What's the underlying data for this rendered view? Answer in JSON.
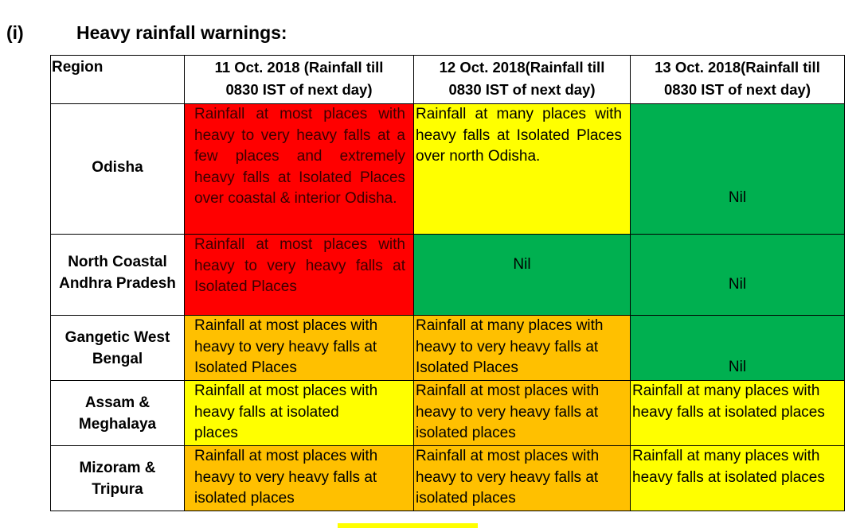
{
  "heading": {
    "number": "(i)",
    "title": "Heavy rainfall warnings:"
  },
  "table": {
    "headers": {
      "region": "Region",
      "day1_line1": "11 Oct. 2018 (Rainfall till",
      "day1_line2": "0830 IST of next day)",
      "day2_line1": "12 Oct. 2018(Rainfall till",
      "day2_line2": "0830 IST of next day)",
      "day3_line1": "13 Oct. 2018(Rainfall till",
      "day3_line2": "0830 IST of next day)"
    },
    "rows": [
      {
        "region": "Odisha",
        "day1": "Rainfall at most places with heavy to very heavy falls at a few places and extremely heavy falls at Isolated Places over coastal & interior Odisha.",
        "day2": "Rainfall at many places with heavy falls at Isolated Places over north Odisha.",
        "day3": "Nil"
      },
      {
        "region_line1": "North Coastal",
        "region_line2": "Andhra Pradesh",
        "day1": "Rainfall at most places with heavy to very heavy falls at Isolated Places",
        "day2": "Nil",
        "day3": "Nil"
      },
      {
        "region_line1": "Gangetic West",
        "region_line2": "Bengal",
        "day1": "Rainfall at most places with heavy to very heavy falls at Isolated Places",
        "day2": "Rainfall at many places with heavy to very heavy falls at Isolated Places",
        "day3": "Nil"
      },
      {
        "region_line1": "Assam &",
        "region_line2": "Meghalaya",
        "day1": "Rainfall at most places with heavy falls at isolated places",
        "day2": "Rainfall at most places with heavy to very heavy falls at isolated places",
        "day3": "Rainfall at many places with heavy falls at isolated places"
      },
      {
        "region_line1": "Mizoram &",
        "region_line2": "Tripura",
        "day1": "Rainfall at most places with heavy to very heavy falls at isolated places",
        "day2": "Rainfall at most places with heavy to very heavy falls at isolated places",
        "day3": "Rainfall at many places with heavy falls at isolated places"
      }
    ]
  },
  "colors": {
    "red": "#ff0000",
    "yellow": "#ffff00",
    "green": "#00b050",
    "orange": "#ffc000"
  }
}
